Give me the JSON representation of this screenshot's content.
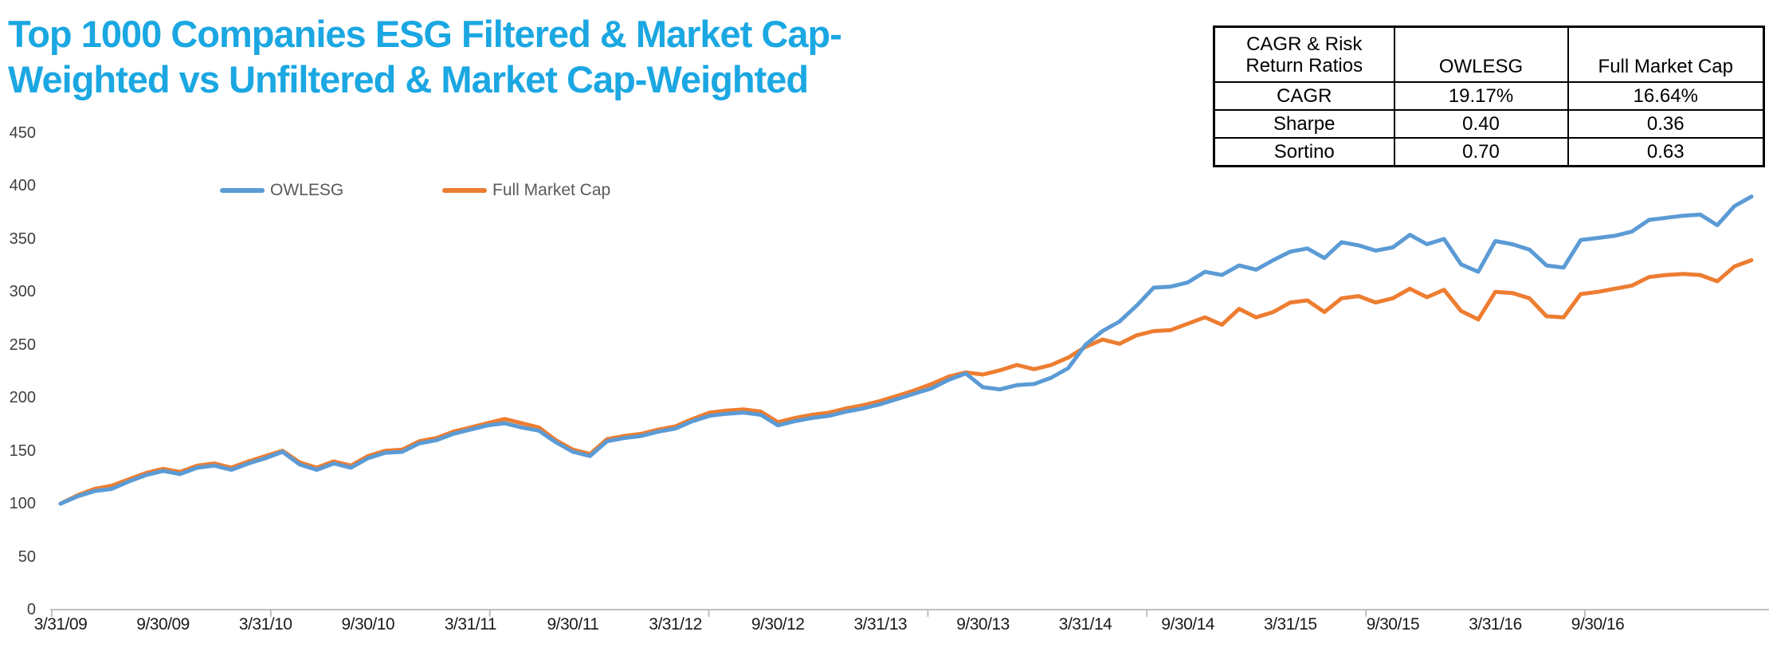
{
  "title": {
    "line1": "Top 1000 Companies ESG Filtered & Market Cap-",
    "line2": "Weighted vs Unfiltered & Market Cap-Weighted"
  },
  "colors": {
    "title": "#1BA7E2",
    "owlesg": "#5B9BD5",
    "full_market_cap": "#ED7D31",
    "axis_line": "#BFBFBF",
    "legend_text": "#595959",
    "axis_text": "#3f3f3f"
  },
  "legend": {
    "items": [
      {
        "label": "OWLESG",
        "color": "#5B9BD5"
      },
      {
        "label": "Full Market Cap",
        "color": "#ED7D31"
      }
    ]
  },
  "stats_table": {
    "header": [
      "CAGR & Risk Return Ratios",
      "OWLESG",
      "Full Market Cap"
    ],
    "rows": [
      [
        "CAGR",
        "19.17%",
        "16.64%"
      ],
      [
        "Sharpe",
        "0.40",
        "0.36"
      ],
      [
        "Sortino",
        "0.70",
        "0.63"
      ]
    ]
  },
  "chart_data": {
    "type": "line",
    "title": "Top 1000 Companies ESG Filtered & Market Cap-Weighted vs Unfiltered & Market Cap-Weighted",
    "xlabel": "",
    "ylabel": "",
    "ylim": [
      0,
      450
    ],
    "grid": false,
    "legend_position": "top-left",
    "y_ticks": [
      0,
      50,
      100,
      150,
      200,
      250,
      300,
      350,
      400,
      450
    ],
    "x_tick_labels": [
      "3/31/09",
      "9/30/09",
      "3/31/10",
      "9/30/10",
      "3/31/11",
      "9/30/11",
      "3/31/12",
      "9/30/12",
      "3/31/13",
      "9/30/13",
      "3/31/14",
      "9/30/14",
      "3/31/15",
      "9/30/15",
      "3/31/16",
      "9/30/16"
    ],
    "x_tick_every_n_points": 6,
    "x": [
      "3/31/09",
      "4/30/09",
      "5/31/09",
      "6/30/09",
      "7/31/09",
      "8/31/09",
      "9/30/09",
      "10/31/09",
      "11/30/09",
      "12/31/09",
      "1/31/10",
      "2/28/10",
      "3/31/10",
      "4/30/10",
      "5/31/10",
      "6/30/10",
      "7/31/10",
      "8/31/10",
      "9/30/10",
      "10/31/10",
      "11/30/10",
      "12/31/10",
      "1/31/11",
      "2/28/11",
      "3/31/11",
      "4/30/11",
      "5/31/11",
      "6/30/11",
      "7/31/11",
      "8/31/11",
      "9/30/11",
      "10/31/11",
      "11/30/11",
      "12/31/11",
      "1/31/12",
      "2/29/12",
      "3/31/12",
      "4/30/12",
      "5/31/12",
      "6/30/12",
      "7/31/12",
      "8/31/12",
      "9/30/12",
      "10/31/12",
      "11/30/12",
      "12/31/12",
      "1/31/13",
      "2/28/13",
      "3/31/13",
      "4/30/13",
      "5/31/13",
      "6/30/13",
      "7/31/13",
      "8/31/13",
      "9/30/13",
      "10/31/13",
      "11/30/13",
      "12/31/13",
      "1/31/14",
      "2/28/14",
      "3/31/14",
      "4/30/14",
      "5/31/14",
      "6/30/14",
      "7/31/14",
      "8/31/14",
      "9/30/14",
      "10/31/14",
      "11/30/14",
      "12/31/14",
      "1/31/15",
      "2/28/15",
      "3/31/15",
      "4/30/15",
      "5/31/15",
      "6/30/15",
      "7/31/15",
      "8/31/15",
      "9/30/15",
      "10/31/15",
      "11/30/15",
      "12/31/15",
      "1/31/16",
      "2/29/16",
      "3/31/16",
      "4/30/16",
      "5/31/16",
      "6/30/16",
      "7/31/16",
      "8/31/16",
      "9/30/16",
      "10/31/16",
      "11/30/16",
      "12/31/16",
      "1/31/17",
      "2/28/17",
      "3/31/17",
      "4/30/17",
      "5/31/17",
      "6/30/17"
    ],
    "series": [
      {
        "name": "OWLESG",
        "color": "#5B9BD5",
        "values": [
          100,
          107,
          112,
          114,
          121,
          127,
          131,
          128,
          134,
          136,
          132,
          138,
          143,
          149,
          137,
          132,
          138,
          134,
          143,
          148,
          149,
          157,
          160,
          166,
          170,
          174,
          176,
          172,
          169,
          158,
          149,
          145,
          159,
          162,
          164,
          168,
          171,
          178,
          183,
          185,
          186,
          184,
          174,
          178,
          181,
          183,
          187,
          190,
          194,
          199,
          204,
          209,
          217,
          223,
          210,
          208,
          212,
          213,
          219,
          228,
          250,
          263,
          272,
          287,
          304,
          305,
          309,
          319,
          316,
          325,
          321,
          330,
          338,
          341,
          332,
          347,
          344,
          339,
          342,
          354,
          345,
          350,
          326,
          319,
          348,
          345,
          340,
          325,
          323,
          349,
          351,
          353,
          357,
          368,
          370,
          372,
          373,
          363,
          381,
          390
        ]
      },
      {
        "name": "Full Market Cap",
        "color": "#ED7D31",
        "values": [
          100,
          108,
          114,
          117,
          123,
          129,
          133,
          130,
          136,
          138,
          134,
          140,
          145,
          150,
          139,
          134,
          140,
          136,
          145,
          150,
          151,
          159,
          162,
          168,
          172,
          176,
          180,
          176,
          172,
          160,
          151,
          147,
          161,
          164,
          166,
          170,
          173,
          180,
          186,
          188,
          189,
          187,
          177,
          181,
          184,
          186,
          190,
          193,
          197,
          202,
          207,
          213,
          220,
          224,
          222,
          226,
          231,
          227,
          231,
          238,
          248,
          255,
          251,
          259,
          263,
          264,
          270,
          276,
          269,
          284,
          276,
          281,
          290,
          292,
          281,
          294,
          296,
          290,
          294,
          303,
          295,
          302,
          282,
          274,
          300,
          299,
          294,
          277,
          276,
          298,
          300,
          303,
          306,
          314,
          316,
          317,
          316,
          310,
          324,
          330
        ]
      }
    ]
  }
}
